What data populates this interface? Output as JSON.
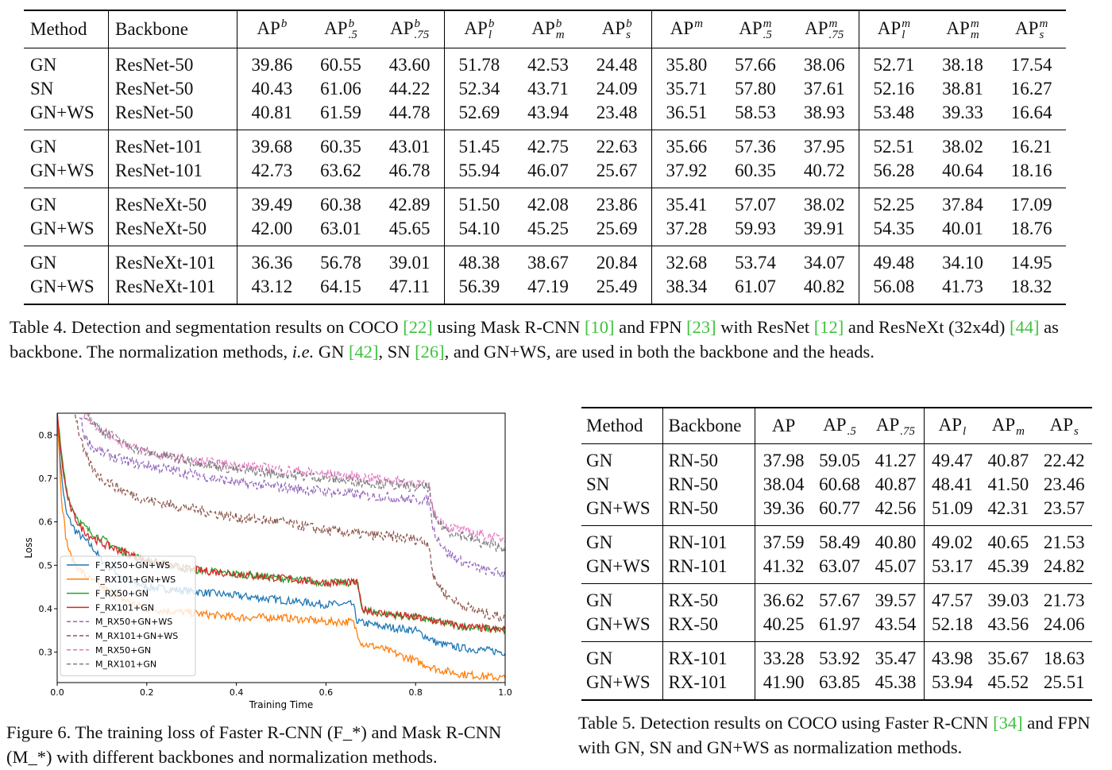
{
  "table4": {
    "headers": {
      "method": "Method",
      "backbone": "Backbone",
      "ap_cols": [
        {
          "base": "AP",
          "sup": "b",
          "sub": ""
        },
        {
          "base": "AP",
          "sup": "b",
          "sub": ".5"
        },
        {
          "base": "AP",
          "sup": "b",
          "sub": ".75"
        },
        {
          "base": "AP",
          "sup": "b",
          "sub": "l"
        },
        {
          "base": "AP",
          "sup": "b",
          "sub": "m"
        },
        {
          "base": "AP",
          "sup": "b",
          "sub": "s"
        },
        {
          "base": "AP",
          "sup": "m",
          "sub": ""
        },
        {
          "base": "AP",
          "sup": "m",
          "sub": ".5"
        },
        {
          "base": "AP",
          "sup": "m",
          "sub": ".75"
        },
        {
          "base": "AP",
          "sup": "m",
          "sub": "l"
        },
        {
          "base": "AP",
          "sup": "m",
          "sub": "m"
        },
        {
          "base": "AP",
          "sup": "m",
          "sub": "s"
        }
      ]
    },
    "groups": [
      {
        "rows": [
          {
            "method": "GN",
            "backbone": "ResNet-50",
            "values": [
              "39.86",
              "60.55",
              "43.60",
              "51.78",
              "42.53",
              "24.48",
              "35.80",
              "57.66",
              "38.06",
              "52.71",
              "38.18",
              "17.54"
            ]
          },
          {
            "method": "SN",
            "backbone": "ResNet-50",
            "values": [
              "40.43",
              "61.06",
              "44.22",
              "52.34",
              "43.71",
              "24.09",
              "35.71",
              "57.80",
              "37.61",
              "52.16",
              "38.81",
              "16.27"
            ]
          },
          {
            "method": "GN+WS",
            "backbone": "ResNet-50",
            "values": [
              "40.81",
              "61.59",
              "44.78",
              "52.69",
              "43.94",
              "23.48",
              "36.51",
              "58.53",
              "38.93",
              "53.48",
              "39.33",
              "16.64"
            ]
          }
        ]
      },
      {
        "rows": [
          {
            "method": "GN",
            "backbone": "ResNet-101",
            "values": [
              "39.68",
              "60.35",
              "43.01",
              "51.45",
              "42.75",
              "22.63",
              "35.66",
              "57.36",
              "37.95",
              "52.51",
              "38.02",
              "16.21"
            ]
          },
          {
            "method": "GN+WS",
            "backbone": "ResNet-101",
            "values": [
              "42.73",
              "63.62",
              "46.78",
              "55.94",
              "46.07",
              "25.67",
              "37.92",
              "60.35",
              "40.72",
              "56.28",
              "40.64",
              "18.16"
            ]
          }
        ]
      },
      {
        "rows": [
          {
            "method": "GN",
            "backbone": "ResNeXt-50",
            "values": [
              "39.49",
              "60.38",
              "42.89",
              "51.50",
              "42.08",
              "23.86",
              "35.41",
              "57.07",
              "38.02",
              "52.25",
              "37.84",
              "17.09"
            ]
          },
          {
            "method": "GN+WS",
            "backbone": "ResNeXt-50",
            "values": [
              "42.00",
              "63.01",
              "45.65",
              "54.10",
              "45.25",
              "25.69",
              "37.28",
              "59.93",
              "39.91",
              "54.35",
              "40.01",
              "18.76"
            ]
          }
        ]
      },
      {
        "rows": [
          {
            "method": "GN",
            "backbone": "ResNeXt-101",
            "values": [
              "36.36",
              "56.78",
              "39.01",
              "48.38",
              "38.67",
              "20.84",
              "32.68",
              "53.74",
              "34.07",
              "49.48",
              "34.10",
              "14.95"
            ]
          },
          {
            "method": "GN+WS",
            "backbone": "ResNeXt-101",
            "values": [
              "43.12",
              "64.15",
              "47.11",
              "56.39",
              "47.19",
              "25.49",
              "38.34",
              "61.07",
              "40.82",
              "56.08",
              "41.73",
              "18.32"
            ]
          }
        ]
      }
    ],
    "caption": [
      {
        "t": "Table 4. Detection and segmentation results on COCO "
      },
      {
        "t": "[22]",
        "cite": true
      },
      {
        "t": " using Mask R-CNN "
      },
      {
        "t": "[10]",
        "cite": true
      },
      {
        "t": " and FPN "
      },
      {
        "t": "[23]",
        "cite": true
      },
      {
        "t": " with ResNet "
      },
      {
        "t": "[12]",
        "cite": true
      },
      {
        "t": " and ResNeXt (32x4d) "
      },
      {
        "t": "[44]",
        "cite": true
      },
      {
        "t": " as backbone. The normalization methods, "
      },
      {
        "t": "i.e.",
        "italic": true
      },
      {
        "t": " GN "
      },
      {
        "t": "[42]",
        "cite": true
      },
      {
        "t": ", SN "
      },
      {
        "t": "[26]",
        "cite": true
      },
      {
        "t": ", and GN+WS, are used in both the backbone and the heads."
      }
    ]
  },
  "table5": {
    "headers": {
      "method": "Method",
      "backbone": "Backbone",
      "ap_cols": [
        {
          "base": "AP",
          "sub": ""
        },
        {
          "base": "AP",
          "sub": ".5"
        },
        {
          "base": "AP",
          "sub": ".75"
        },
        {
          "base": "AP",
          "sub": "l"
        },
        {
          "base": "AP",
          "sub": "m"
        },
        {
          "base": "AP",
          "sub": "s"
        }
      ]
    },
    "groups": [
      {
        "rows": [
          {
            "method": "GN",
            "backbone": "RN-50",
            "values": [
              "37.98",
              "59.05",
              "41.27",
              "49.47",
              "40.87",
              "22.42"
            ]
          },
          {
            "method": "SN",
            "backbone": "RN-50",
            "values": [
              "38.04",
              "60.68",
              "40.87",
              "48.41",
              "41.50",
              "23.46"
            ]
          },
          {
            "method": "GN+WS",
            "backbone": "RN-50",
            "values": [
              "39.36",
              "60.77",
              "42.56",
              "51.09",
              "42.31",
              "23.57"
            ]
          }
        ]
      },
      {
        "rows": [
          {
            "method": "GN",
            "backbone": "RN-101",
            "values": [
              "37.59",
              "58.49",
              "40.80",
              "49.02",
              "40.65",
              "21.53"
            ]
          },
          {
            "method": "GN+WS",
            "backbone": "RN-101",
            "values": [
              "41.32",
              "63.07",
              "45.07",
              "53.17",
              "45.39",
              "24.82"
            ]
          }
        ]
      },
      {
        "rows": [
          {
            "method": "GN",
            "backbone": "RX-50",
            "values": [
              "36.62",
              "57.67",
              "39.57",
              "47.57",
              "39.03",
              "21.73"
            ]
          },
          {
            "method": "GN+WS",
            "backbone": "RX-50",
            "values": [
              "40.25",
              "61.97",
              "43.54",
              "52.18",
              "43.56",
              "24.06"
            ]
          }
        ]
      },
      {
        "rows": [
          {
            "method": "GN",
            "backbone": "RX-101",
            "values": [
              "33.28",
              "53.92",
              "35.47",
              "43.98",
              "35.67",
              "18.63"
            ]
          },
          {
            "method": "GN+WS",
            "backbone": "RX-101",
            "values": [
              "41.90",
              "63.85",
              "45.38",
              "53.94",
              "45.52",
              "25.51"
            ]
          }
        ]
      }
    ],
    "caption": [
      {
        "t": "Table 5. Detection results on COCO using Faster R-CNN "
      },
      {
        "t": "[34]",
        "cite": true
      },
      {
        "t": " and FPN with GN, SN and GN+WS as normalization methods."
      }
    ]
  },
  "figure6": {
    "caption": [
      {
        "t": "Figure 6. The training loss of Faster R-CNN (F_*) and Mask R-CNN (M_*) with different backbones and normalization methods."
      }
    ]
  },
  "colors": {
    "cite": "#3fc23f",
    "series_blue": "#1f77b4",
    "series_orange": "#ff7f0e",
    "series_green": "#2ca02c",
    "series_red": "#d62728",
    "series_purple": "#9467bd",
    "series_brown": "#8c564b",
    "series_pink": "#e377c2",
    "series_gray": "#7f7f7f"
  },
  "chart_data": {
    "type": "line",
    "xlabel": "Training Time",
    "ylabel": "Loss",
    "xlim": [
      0.0,
      1.0
    ],
    "ylim": [
      0.23,
      0.85
    ],
    "x_ticks": [
      "0.0",
      "0.2",
      "0.4",
      "0.6",
      "0.8",
      "1.0"
    ],
    "y_ticks": [
      "0.3",
      "0.4",
      "0.5",
      "0.6",
      "0.7",
      "0.8"
    ],
    "legend_position": "lower-left",
    "grid": false,
    "series": [
      {
        "name": "F_RX50+GN+WS",
        "style": "solid",
        "color": "#1f77b4",
        "x": [
          0,
          0.01,
          0.02,
          0.04,
          0.06,
          0.08,
          0.1,
          0.15,
          0.2,
          0.3,
          0.4,
          0.5,
          0.6,
          0.66,
          0.67,
          0.72,
          0.8,
          0.85,
          0.9,
          1.0
        ],
        "y": [
          0.85,
          0.7,
          0.62,
          0.58,
          0.56,
          0.54,
          0.51,
          0.47,
          0.45,
          0.44,
          0.43,
          0.42,
          0.41,
          0.41,
          0.37,
          0.36,
          0.35,
          0.32,
          0.31,
          0.3
        ]
      },
      {
        "name": "F_RX101+GN+WS",
        "style": "solid",
        "color": "#ff7f0e",
        "x": [
          0,
          0.01,
          0.02,
          0.03,
          0.05,
          0.07,
          0.1,
          0.15,
          0.2,
          0.3,
          0.4,
          0.5,
          0.6,
          0.66,
          0.68,
          0.72,
          0.8,
          0.85,
          0.9,
          1.0
        ],
        "y": [
          0.85,
          0.65,
          0.56,
          0.52,
          0.49,
          0.47,
          0.45,
          0.42,
          0.4,
          0.39,
          0.38,
          0.38,
          0.37,
          0.37,
          0.32,
          0.31,
          0.28,
          0.26,
          0.25,
          0.24
        ]
      },
      {
        "name": "F_RX50+GN",
        "style": "solid",
        "color": "#2ca02c",
        "x": [
          0,
          0.01,
          0.02,
          0.03,
          0.05,
          0.07,
          0.1,
          0.15,
          0.2,
          0.3,
          0.4,
          0.5,
          0.6,
          0.67,
          0.68,
          0.72,
          0.8,
          0.85,
          0.9,
          1.0
        ],
        "y": [
          0.85,
          0.75,
          0.68,
          0.64,
          0.6,
          0.58,
          0.56,
          0.53,
          0.51,
          0.49,
          0.48,
          0.47,
          0.46,
          0.46,
          0.4,
          0.39,
          0.38,
          0.37,
          0.36,
          0.35
        ]
      },
      {
        "name": "F_RX101+GN",
        "style": "solid",
        "color": "#d62728",
        "x": [
          0,
          0.01,
          0.02,
          0.03,
          0.05,
          0.07,
          0.1,
          0.15,
          0.2,
          0.3,
          0.4,
          0.5,
          0.6,
          0.67,
          0.68,
          0.72,
          0.8,
          0.85,
          0.9,
          1.0
        ],
        "y": [
          0.85,
          0.74,
          0.67,
          0.63,
          0.59,
          0.57,
          0.55,
          0.53,
          0.51,
          0.49,
          0.48,
          0.47,
          0.46,
          0.46,
          0.4,
          0.39,
          0.38,
          0.37,
          0.36,
          0.35
        ]
      },
      {
        "name": "M_RX50+GN+WS",
        "style": "dashed",
        "color": "#9467bd",
        "x": [
          0.05,
          0.06,
          0.08,
          0.1,
          0.15,
          0.2,
          0.3,
          0.4,
          0.5,
          0.6,
          0.7,
          0.8,
          0.83,
          0.84,
          0.87,
          0.9,
          0.95,
          1.0
        ],
        "y": [
          0.85,
          0.8,
          0.77,
          0.76,
          0.74,
          0.73,
          0.71,
          0.69,
          0.68,
          0.67,
          0.66,
          0.65,
          0.65,
          0.58,
          0.53,
          0.51,
          0.49,
          0.48
        ]
      },
      {
        "name": "M_RX101+GN+WS",
        "style": "dashed",
        "color": "#8c564b",
        "x": [
          0.04,
          0.05,
          0.06,
          0.08,
          0.1,
          0.15,
          0.2,
          0.3,
          0.4,
          0.5,
          0.6,
          0.7,
          0.8,
          0.83,
          0.84,
          0.87,
          0.9,
          0.95,
          1.0
        ],
        "y": [
          0.85,
          0.8,
          0.76,
          0.72,
          0.7,
          0.67,
          0.65,
          0.63,
          0.61,
          0.6,
          0.58,
          0.57,
          0.56,
          0.55,
          0.47,
          0.43,
          0.41,
          0.39,
          0.38
        ]
      },
      {
        "name": "M_RX50+GN",
        "style": "dashed",
        "color": "#e377c2",
        "x": [
          0.06,
          0.08,
          0.1,
          0.15,
          0.2,
          0.3,
          0.4,
          0.5,
          0.6,
          0.7,
          0.8,
          0.83,
          0.84,
          0.87,
          0.9,
          0.95,
          1.0
        ],
        "y": [
          0.85,
          0.83,
          0.81,
          0.78,
          0.76,
          0.74,
          0.73,
          0.72,
          0.71,
          0.7,
          0.69,
          0.68,
          0.62,
          0.59,
          0.58,
          0.57,
          0.56
        ]
      },
      {
        "name": "M_RX101+GN",
        "style": "dashed",
        "color": "#7f7f7f",
        "x": [
          0.06,
          0.08,
          0.1,
          0.15,
          0.2,
          0.3,
          0.4,
          0.5,
          0.6,
          0.7,
          0.8,
          0.83,
          0.84,
          0.87,
          0.9,
          0.95,
          1.0
        ],
        "y": [
          0.85,
          0.83,
          0.81,
          0.78,
          0.76,
          0.74,
          0.72,
          0.71,
          0.7,
          0.69,
          0.68,
          0.68,
          0.61,
          0.58,
          0.57,
          0.55,
          0.54
        ]
      }
    ]
  }
}
